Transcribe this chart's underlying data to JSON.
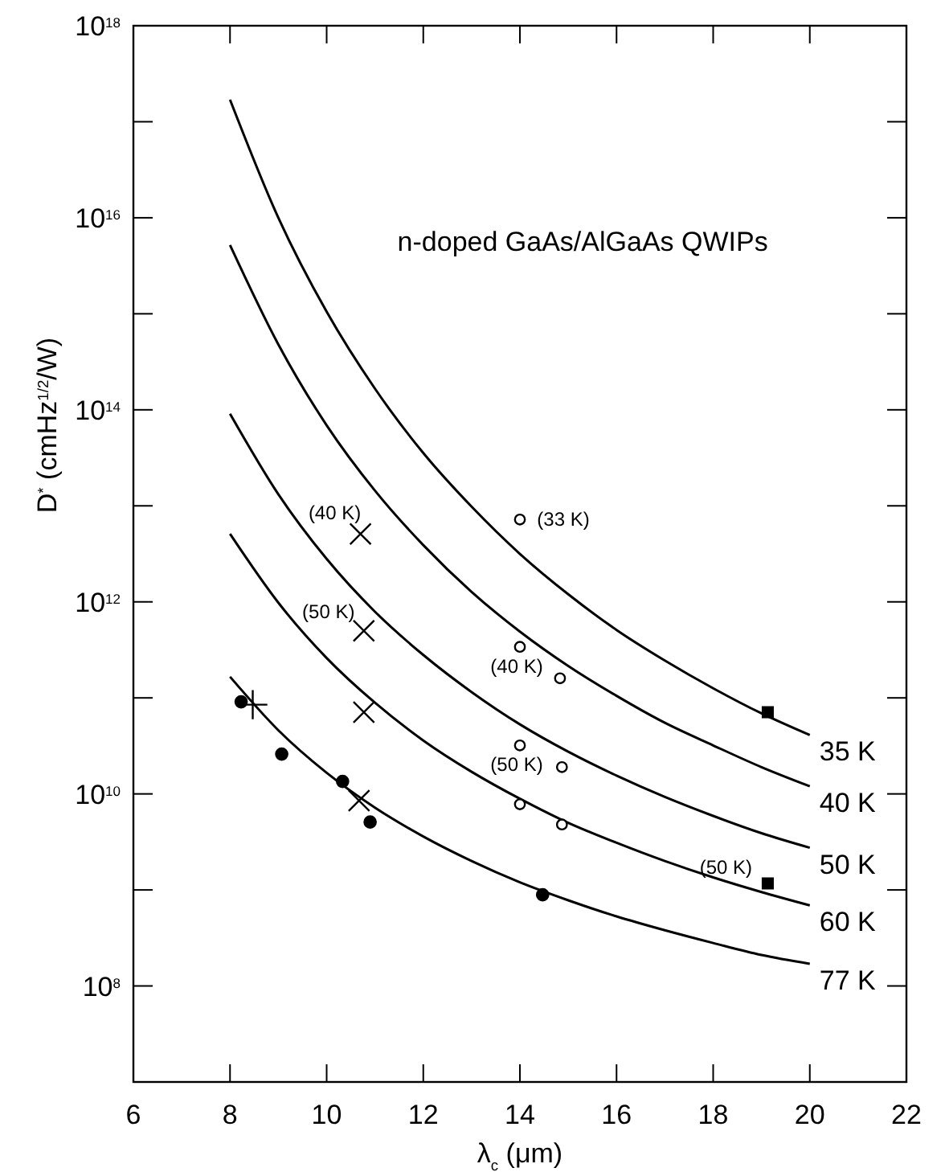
{
  "chart_data": {
    "type": "line",
    "title": "n-doped GaAs/AlGaAs QWIPs",
    "xlabel": "λ$_{c}$ (μm)",
    "ylabel": "D$^{*}$ (cmHz$^{1/2}$/W)",
    "log": "y",
    "grid": false,
    "legend": "right",
    "line_style": "solid",
    "xlim": [
      6,
      22
    ],
    "ylim": [
      10000000.0,
      1e+18
    ],
    "xticks": [
      6,
      8,
      10,
      12,
      14,
      16,
      18,
      20,
      22
    ],
    "yticks": [
      {
        "value": 100000000.0,
        "label": "10$^{8}$"
      },
      {
        "value": 1000000000.0,
        "label": null
      },
      {
        "value": 10000000000.0,
        "label": "10$^{10}$"
      },
      {
        "value": 100000000000.0,
        "label": null
      },
      {
        "value": 1000000000000.0,
        "label": "10$^{12}$"
      },
      {
        "value": 10000000000000.0,
        "label": null
      },
      {
        "value": 100000000000000.0,
        "label": "10$^{14}$"
      },
      {
        "value": 1000000000000000.0,
        "label": null
      },
      {
        "value": 1e+16,
        "label": "10$^{16}$"
      },
      {
        "value": 1e+17,
        "label": null
      },
      {
        "value": 1e+18,
        "label": "10$^{18}$"
      }
    ],
    "x": [
      8,
      9,
      10,
      11,
      12,
      13,
      14,
      15,
      16,
      17,
      18,
      19,
      20
    ],
    "series": [
      {
        "name": "35 K",
        "color": "#000000",
        "values": [
          1.7e+17,
          1e+16,
          1050000000000000.0,
          166000000000000.0,
          35500000000000.0,
          9800000000000.0,
          3160000000000.0,
          1200000000000.0,
          510000000000.0,
          245000000000.0,
          126000000000.0,
          69000000000.0,
          41000000000.0
        ]
      },
      {
        "name": "40 K",
        "color": "#000000",
        "values": [
          5200000000000000.0,
          480000000000000.0,
          69000000000000.0,
          14400000000000.0,
          3900000000000.0,
          1270000000000.0,
          490000000000.0,
          215000000000.0,
          105000000000.0,
          55000000000.0,
          32000000000.0,
          19000000000.0,
          12000000000.0
        ]
      },
      {
        "name": "50 K",
        "color": "#000000",
        "values": [
          91000000000000.0,
          13200000000000.0,
          2800000000000.0,
          790000000000.0,
          280000000000.0,
          115000000000.0,
          53000000000.0,
          27500000000.0,
          15500000000.0,
          9300000000.0,
          5900000000.0,
          3900000000.0,
          2750000000.0
        ]
      },
      {
        "name": "60 K",
        "color": "#000000",
        "values": [
          5100000000000.0,
          980000000000.0,
          260000000000.0,
          89000000000.0,
          36000000000.0,
          17000000000.0,
          8900000000.0,
          5000000000.0,
          3100000000.0,
          2000000000.0,
          1350000000.0,
          950000000.0,
          690000000.0
        ]
      },
      {
        "name": "77 K",
        "color": "#000000",
        "values": [
          166000000000.0,
          46000000000.0,
          16600000000.0,
          7200000000.0,
          3600000000.0,
          2000000000.0,
          1200000000.0,
          780000000.0,
          530000000.0,
          380000000.0,
          280000000.0,
          210000000.0,
          170000000.0
        ]
      },
      {
        "type": "scatter",
        "marker": "circle",
        "color": "#000000",
        "x": [
          8.23,
          9.07,
          10.33,
          10.9,
          14.47
        ],
        "values": [
          91000000000.0,
          26000000000.0,
          13500000000.0,
          5100000000.0,
          890000000.0
        ]
      },
      {
        "type": "scatter",
        "marker": "cross",
        "color": "#000000",
        "x": [
          8.47
        ],
        "values": [
          85000000000.0
        ]
      },
      {
        "type": "scatter",
        "marker": "x",
        "color": "#000000",
        "x": [
          10.7,
          10.77,
          10.77,
          10.67
        ],
        "values": [
          5100000000000.0,
          500000000000.0,
          71000000000.0,
          8500000000.0
        ]
      },
      {
        "type": "scatter",
        "marker": "circle-open",
        "color": "#000000",
        "x": [
          14.0,
          14.0,
          14.83,
          14.0,
          14.87,
          14.0,
          14.87
        ],
        "values": [
          7200000000000.0,
          340000000000.0,
          160000000000.0,
          32000000000.0,
          19000000000.0,
          7800000000.0,
          4800000000.0
        ]
      },
      {
        "type": "scatter",
        "marker": "square",
        "color": "#000000",
        "x": [
          19.13,
          19.13
        ],
        "values": [
          71000000000.0,
          1170000000.0
        ]
      }
    ],
    "annotations": [
      {
        "text": "(33 K)",
        "x": 14.0,
        "y": 7200000000000.0
      },
      {
        "text": "(40 K)",
        "x": 10.7,
        "y": 5100000000000.0
      },
      {
        "text": "(50 K)",
        "x": 10.77,
        "y": 500000000000.0
      },
      {
        "text": "(40 K)",
        "x": 14.0,
        "y": 340000000000.0
      },
      {
        "text": "(50 K)",
        "x": 14.0,
        "y": 32000000000.0
      },
      {
        "text": "(50 K)",
        "x": 19.13,
        "y": 1170000000.0
      }
    ]
  }
}
